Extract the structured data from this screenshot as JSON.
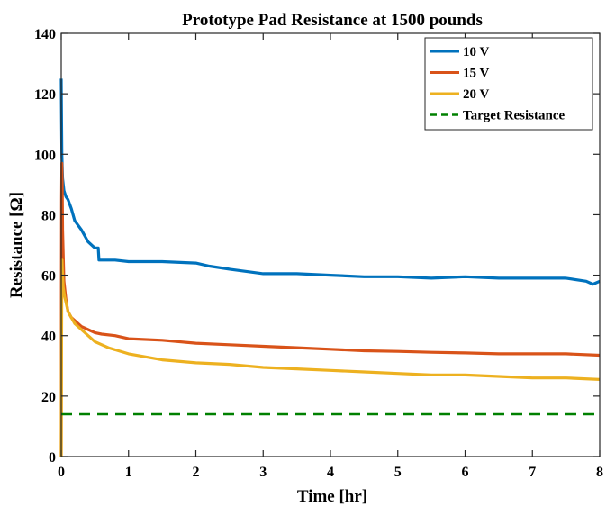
{
  "chart_data": {
    "type": "line",
    "title": "Prototype Pad Resistance at 1500 pounds",
    "xlabel": "Time [hr]",
    "ylabel": "Resistance [Ω]",
    "xlim": [
      0,
      8
    ],
    "ylim": [
      0,
      140
    ],
    "xticks": [
      0,
      1,
      2,
      3,
      4,
      5,
      6,
      7,
      8
    ],
    "yticks": [
      0,
      20,
      40,
      60,
      80,
      100,
      120,
      140
    ],
    "grid": false,
    "legend_position": "top-right",
    "series": [
      {
        "name": "10 V",
        "color": "#0072BD",
        "style": "solid",
        "x": [
          0,
          0.005,
          0.01,
          0.02,
          0.04,
          0.07,
          0.1,
          0.15,
          0.2,
          0.3,
          0.4,
          0.5,
          0.55,
          0.56,
          0.6,
          0.8,
          1,
          1.5,
          2,
          2.2,
          2.5,
          3,
          3.5,
          4,
          4.5,
          5,
          5.5,
          6,
          6.5,
          7,
          7.5,
          7.8,
          7.9,
          8
        ],
        "y": [
          125,
          110,
          100,
          92,
          88,
          86,
          85,
          82,
          78,
          75,
          71,
          69,
          69,
          65,
          65,
          65,
          64.5,
          64.5,
          64,
          63,
          62,
          60.5,
          60.5,
          60,
          59.5,
          59.5,
          59,
          59.5,
          59,
          59,
          59,
          58,
          57,
          58
        ]
      },
      {
        "name": "15 V",
        "color": "#D95319",
        "style": "solid",
        "x": [
          0,
          0.003,
          0.006,
          0.01,
          0.015,
          0.02,
          0.04,
          0.07,
          0.1,
          0.15,
          0.2,
          0.3,
          0.4,
          0.5,
          0.6,
          0.8,
          1,
          1.5,
          2,
          2.5,
          3,
          3.5,
          4,
          4.5,
          5,
          5.5,
          6,
          6.5,
          7,
          7.5,
          8
        ],
        "y": [
          0,
          55,
          85,
          97,
          90,
          75,
          58,
          52,
          48,
          46,
          45,
          43,
          42,
          41,
          40.5,
          40,
          39,
          38.5,
          37.5,
          37,
          36.5,
          36,
          35.5,
          35,
          34.8,
          34.5,
          34.3,
          34,
          34,
          34,
          33.5
        ]
      },
      {
        "name": "20 V",
        "color": "#EDB120",
        "style": "solid",
        "x": [
          0,
          0.004,
          0.008,
          0.012,
          0.02,
          0.03,
          0.05,
          0.08,
          0.1,
          0.15,
          0.2,
          0.3,
          0.4,
          0.5,
          0.7,
          1,
          1.5,
          2,
          2.5,
          3,
          3.5,
          4,
          4.5,
          5,
          5.5,
          6,
          6.5,
          7,
          7.5,
          8
        ],
        "y": [
          0,
          30,
          55,
          65,
          60,
          56,
          53,
          50,
          48,
          46,
          44,
          42,
          40,
          38,
          36,
          34,
          32,
          31,
          30.5,
          29.5,
          29,
          28.5,
          28,
          27.5,
          27,
          27,
          26.5,
          26,
          26,
          25.5
        ]
      },
      {
        "name": "Target Resistance",
        "color": "#008000",
        "style": "dashed",
        "x": [
          0,
          8
        ],
        "y": [
          14,
          14
        ]
      }
    ]
  }
}
